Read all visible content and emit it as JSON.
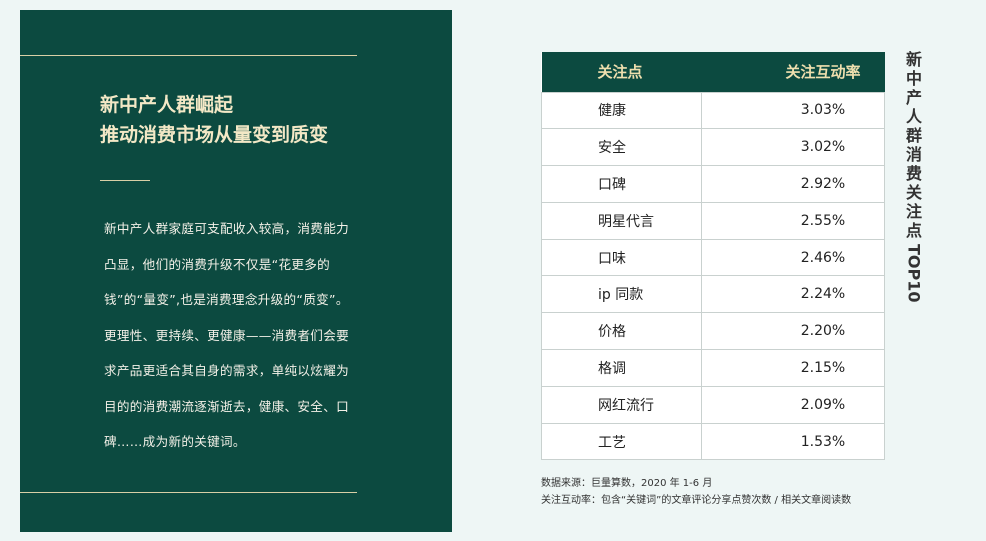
{
  "left": {
    "title_lines": [
      "新中产人群崛起",
      "推动消费市场从量变到质变"
    ],
    "body": "新中产人群家庭可支配收入较高，消费能力凸显，他们的消费升级不仅是“花更多的钱”的“量变”,也是消费理念升级的“质变”。更理性、更持续、更健康——消费者们会要求产品更适合其自身的需求，单纯以炫耀为目的的消费潮流逐渐逝去，健康、安全、口碑……成为新的关键词。"
  },
  "table": {
    "headers": [
      "关注点",
      "关注互动率"
    ],
    "rows": [
      [
        "健康",
        "3.03%"
      ],
      [
        "安全",
        "3.02%"
      ],
      [
        "口碑",
        "2.92%"
      ],
      [
        "明星代言",
        "2.55%"
      ],
      [
        "口味",
        "2.46%"
      ],
      [
        "ip 同款",
        "2.24%"
      ],
      [
        "价格",
        "2.20%"
      ],
      [
        "格调",
        "2.15%"
      ],
      [
        "网红流行",
        "2.09%"
      ],
      [
        "工艺",
        "1.53%"
      ]
    ]
  },
  "side_title": {
    "cjk": "新中产人群消费关注点",
    "latin": "TOP10"
  },
  "notes": [
    "数据来源：巨量算数，2020 年 1-6 月",
    "关注互动率：包含“关键词”的文章评论分享点赞次数 / 相关文章阅读数"
  ],
  "colors": {
    "panel": "#0c4a40",
    "title": "#f3e8c6",
    "background": "#eef6f5"
  }
}
